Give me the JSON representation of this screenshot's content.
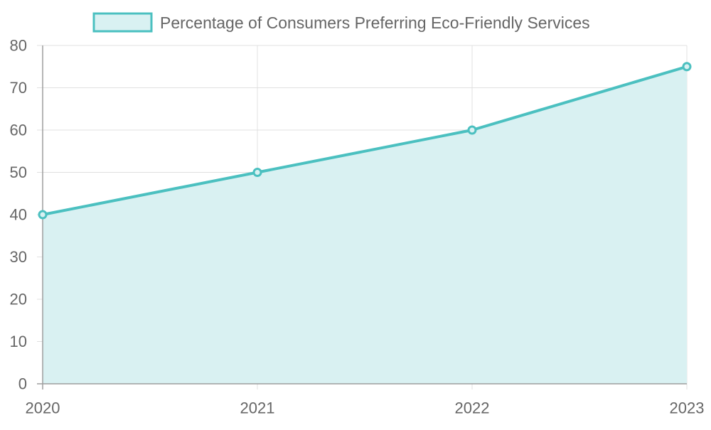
{
  "chart_data": {
    "type": "area",
    "categories": [
      "2020",
      "2021",
      "2022",
      "2023"
    ],
    "series": [
      {
        "name": "Percentage of Consumers Preferring Eco-Friendly Services",
        "values": [
          40,
          50,
          60,
          75
        ]
      }
    ],
    "ylim": [
      0,
      80
    ],
    "yticks": [
      0,
      10,
      20,
      30,
      40,
      50,
      60,
      70,
      80
    ],
    "grid": true,
    "legend_position": "top-center"
  },
  "colors": {
    "line": "#4BC0C0",
    "fill": "#D9F1F2",
    "grid": "#E0E0E0",
    "axis": "#9E9E9E",
    "text": "#666666"
  }
}
